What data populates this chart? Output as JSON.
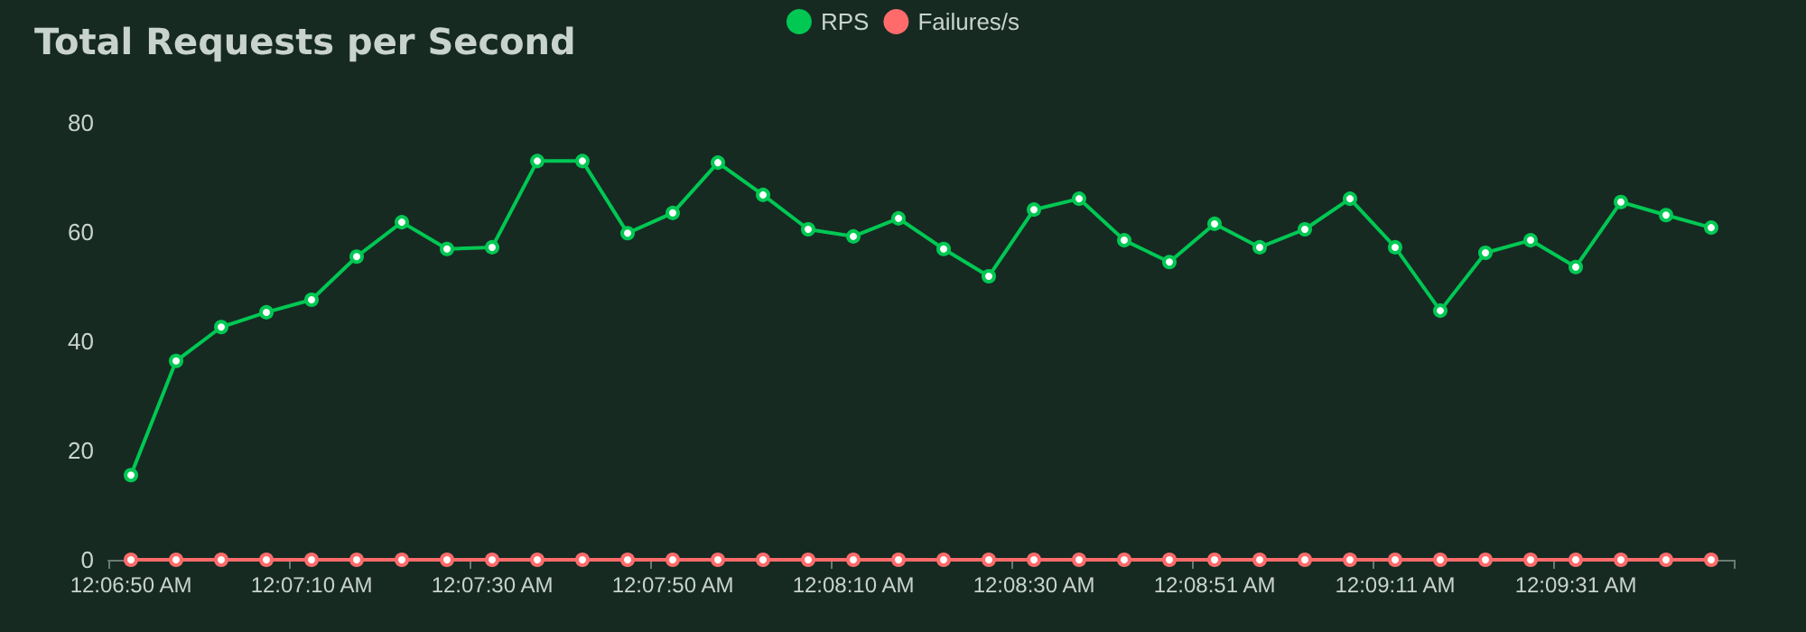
{
  "chart_data": {
    "type": "line",
    "title": "Total Requests per Second",
    "categories": [
      "12:06:50 AM",
      null,
      null,
      null,
      "12:07:10 AM",
      null,
      null,
      null,
      "12:07:30 AM",
      null,
      null,
      null,
      "12:07:50 AM",
      null,
      null,
      null,
      "12:08:10 AM",
      null,
      null,
      null,
      "12:08:30 AM",
      null,
      null,
      null,
      "12:08:51 AM",
      null,
      null,
      null,
      "12:09:11 AM",
      null,
      null,
      null,
      "12:09:31 AM",
      null,
      null,
      null
    ],
    "series": [
      {
        "name": "RPS",
        "color": "#00c853",
        "values": [
          15.5,
          36.4,
          42.6,
          45.3,
          47.6,
          55.5,
          61.8,
          56.9,
          57.2,
          73,
          73,
          59.8,
          63.5,
          72.7,
          66.8,
          60.5,
          59.2,
          62.5,
          56.9,
          51.9,
          64.1,
          66.1,
          58.5,
          54.5,
          61.5,
          57.2,
          60.5,
          66.1,
          57.2,
          45.6,
          56.2,
          58.5,
          53.6,
          65.5,
          63.1,
          60.8
        ]
      },
      {
        "name": "Failures/s",
        "color": "#ff6b6b",
        "values": [
          0,
          0,
          0,
          0,
          0,
          0,
          0,
          0,
          0,
          0,
          0,
          0,
          0,
          0,
          0,
          0,
          0,
          0,
          0,
          0,
          0,
          0,
          0,
          0,
          0,
          0,
          0,
          0,
          0,
          0,
          0,
          0,
          0,
          0,
          0,
          0
        ]
      }
    ],
    "ylim": [
      0,
      80
    ],
    "yticks": [
      0,
      20,
      40,
      60,
      80
    ],
    "grid": false,
    "legend": "top",
    "marker": "circle",
    "line_style": "solid"
  }
}
